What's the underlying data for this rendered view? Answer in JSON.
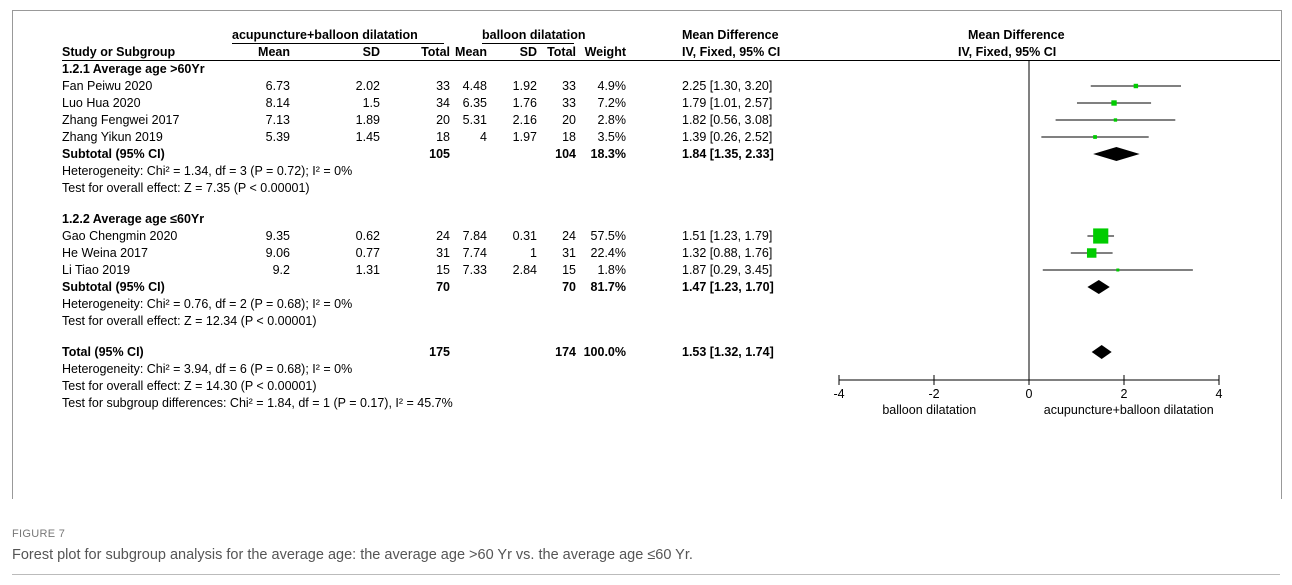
{
  "headers": {
    "group1": "acupuncture+balloon dilatation",
    "group2": "balloon dilatation",
    "md": "Mean Difference",
    "md_plot": "Mean Difference",
    "study": "Study or Subgroup",
    "mean1": "Mean",
    "sd1": "SD",
    "total1": "Total",
    "mean2": "Mean",
    "sd2": "SD",
    "total2": "Total",
    "weight": "Weight",
    "ci": "IV, Fixed, 95% CI",
    "ci_plot": "IV, Fixed, 95% CI"
  },
  "subgroup1": {
    "title": "1.2.1 Average age >60Yr",
    "rows": [
      {
        "study": "Fan Peiwu 2020",
        "mean1": "6.73",
        "sd1": "2.02",
        "total1": "33",
        "mean2": "4.48",
        "sd2": "1.92",
        "total2": "33",
        "weight": "4.9%",
        "ci": "2.25 [1.30, 3.20]"
      },
      {
        "study": "Luo Hua 2020",
        "mean1": "8.14",
        "sd1": "1.5",
        "total1": "34",
        "mean2": "6.35",
        "sd2": "1.76",
        "total2": "33",
        "weight": "7.2%",
        "ci": "1.79 [1.01, 2.57]"
      },
      {
        "study": "Zhang Fengwei 2017",
        "mean1": "7.13",
        "sd1": "1.89",
        "total1": "20",
        "mean2": "5.31",
        "sd2": "2.16",
        "total2": "20",
        "weight": "2.8%",
        "ci": "1.82 [0.56, 3.08]"
      },
      {
        "study": "Zhang Yikun 2019",
        "mean1": "5.39",
        "sd1": "1.45",
        "total1": "18",
        "mean2": "4",
        "sd2": "1.97",
        "total2": "18",
        "weight": "3.5%",
        "ci": "1.39 [0.26, 2.52]"
      }
    ],
    "subtotal": {
      "label": "Subtotal (95% CI)",
      "total1": "105",
      "total2": "104",
      "weight": "18.3%",
      "ci": "1.84 [1.35, 2.33]"
    },
    "heterogeneity": "Heterogeneity: Chi² = 1.34, df = 3 (P = 0.72); I² = 0%",
    "overall": "Test for overall effect: Z = 7.35 (P < 0.00001)"
  },
  "subgroup2": {
    "title": "1.2.2 Average age ≤60Yr",
    "rows": [
      {
        "study": "Gao Chengmin 2020",
        "mean1": "9.35",
        "sd1": "0.62",
        "total1": "24",
        "mean2": "7.84",
        "sd2": "0.31",
        "total2": "24",
        "weight": "57.5%",
        "ci": "1.51 [1.23, 1.79]"
      },
      {
        "study": "He Weina 2017",
        "mean1": "9.06",
        "sd1": "0.77",
        "total1": "31",
        "mean2": "7.74",
        "sd2": "1",
        "total2": "31",
        "weight": "22.4%",
        "ci": "1.32 [0.88, 1.76]"
      },
      {
        "study": "Li Tiao 2019",
        "mean1": "9.2",
        "sd1": "1.31",
        "total1": "15",
        "mean2": "7.33",
        "sd2": "2.84",
        "total2": "15",
        "weight": "1.8%",
        "ci": "1.87 [0.29, 3.45]"
      }
    ],
    "subtotal": {
      "label": "Subtotal (95% CI)",
      "total1": "70",
      "total2": "70",
      "weight": "81.7%",
      "ci": "1.47 [1.23, 1.70]"
    },
    "heterogeneity": "Heterogeneity: Chi² = 0.76, df = 2 (P = 0.68); I² = 0%",
    "overall": "Test for overall effect: Z = 12.34 (P < 0.00001)"
  },
  "total": {
    "label": "Total (95% CI)",
    "total1": "175",
    "total2": "174",
    "weight": "100.0%",
    "ci": "1.53 [1.32, 1.74]"
  },
  "footer": {
    "heterogeneity": "Heterogeneity: Chi² = 3.94, df = 6 (P = 0.68); I² = 0%",
    "overall": "Test for overall effect: Z = 14.30 (P < 0.00001)",
    "subgroup_diff": "Test for subgroup differences: Chi² = 1.84, df = 1 (P = 0.17), I² = 45.7%"
  },
  "caption": {
    "label": "FIGURE 7",
    "text": "Forest plot for subgroup analysis for the average age: the average age >60 Yr vs. the average age ≤60 Yr."
  },
  "colors": {
    "study_marker": "#00cc00",
    "diamond": "#000000"
  },
  "chart_data": {
    "type": "forest",
    "xlim": [
      -4,
      4
    ],
    "xticks": [
      "-4",
      "-2",
      "0",
      "2",
      "4"
    ],
    "x_left_label": "balloon dilatation",
    "x_right_label": "acupuncture+balloon dilatation",
    "studies": [
      {
        "name": "Fan Peiwu 2020",
        "md": 2.25,
        "lo": 1.3,
        "hi": 3.2,
        "weight": 4.9
      },
      {
        "name": "Luo Hua 2020",
        "md": 1.79,
        "lo": 1.01,
        "hi": 2.57,
        "weight": 7.2
      },
      {
        "name": "Zhang Fengwei 2017",
        "md": 1.82,
        "lo": 0.56,
        "hi": 3.08,
        "weight": 2.8
      },
      {
        "name": "Zhang Yikun 2019",
        "md": 1.39,
        "lo": 0.26,
        "hi": 2.52,
        "weight": 3.5
      },
      {
        "name": "Gao Chengmin 2020",
        "md": 1.51,
        "lo": 1.23,
        "hi": 1.79,
        "weight": 57.5
      },
      {
        "name": "He Weina 2017",
        "md": 1.32,
        "lo": 0.88,
        "hi": 1.76,
        "weight": 22.4
      },
      {
        "name": "Li Tiao 2019",
        "md": 1.87,
        "lo": 0.29,
        "hi": 3.45,
        "weight": 1.8
      }
    ],
    "diamonds": [
      {
        "name": "Subtotal 1.2.1",
        "md": 1.84,
        "lo": 1.35,
        "hi": 2.33
      },
      {
        "name": "Subtotal 1.2.2",
        "md": 1.47,
        "lo": 1.23,
        "hi": 1.7
      },
      {
        "name": "Total",
        "md": 1.53,
        "lo": 1.32,
        "hi": 1.74
      }
    ]
  }
}
